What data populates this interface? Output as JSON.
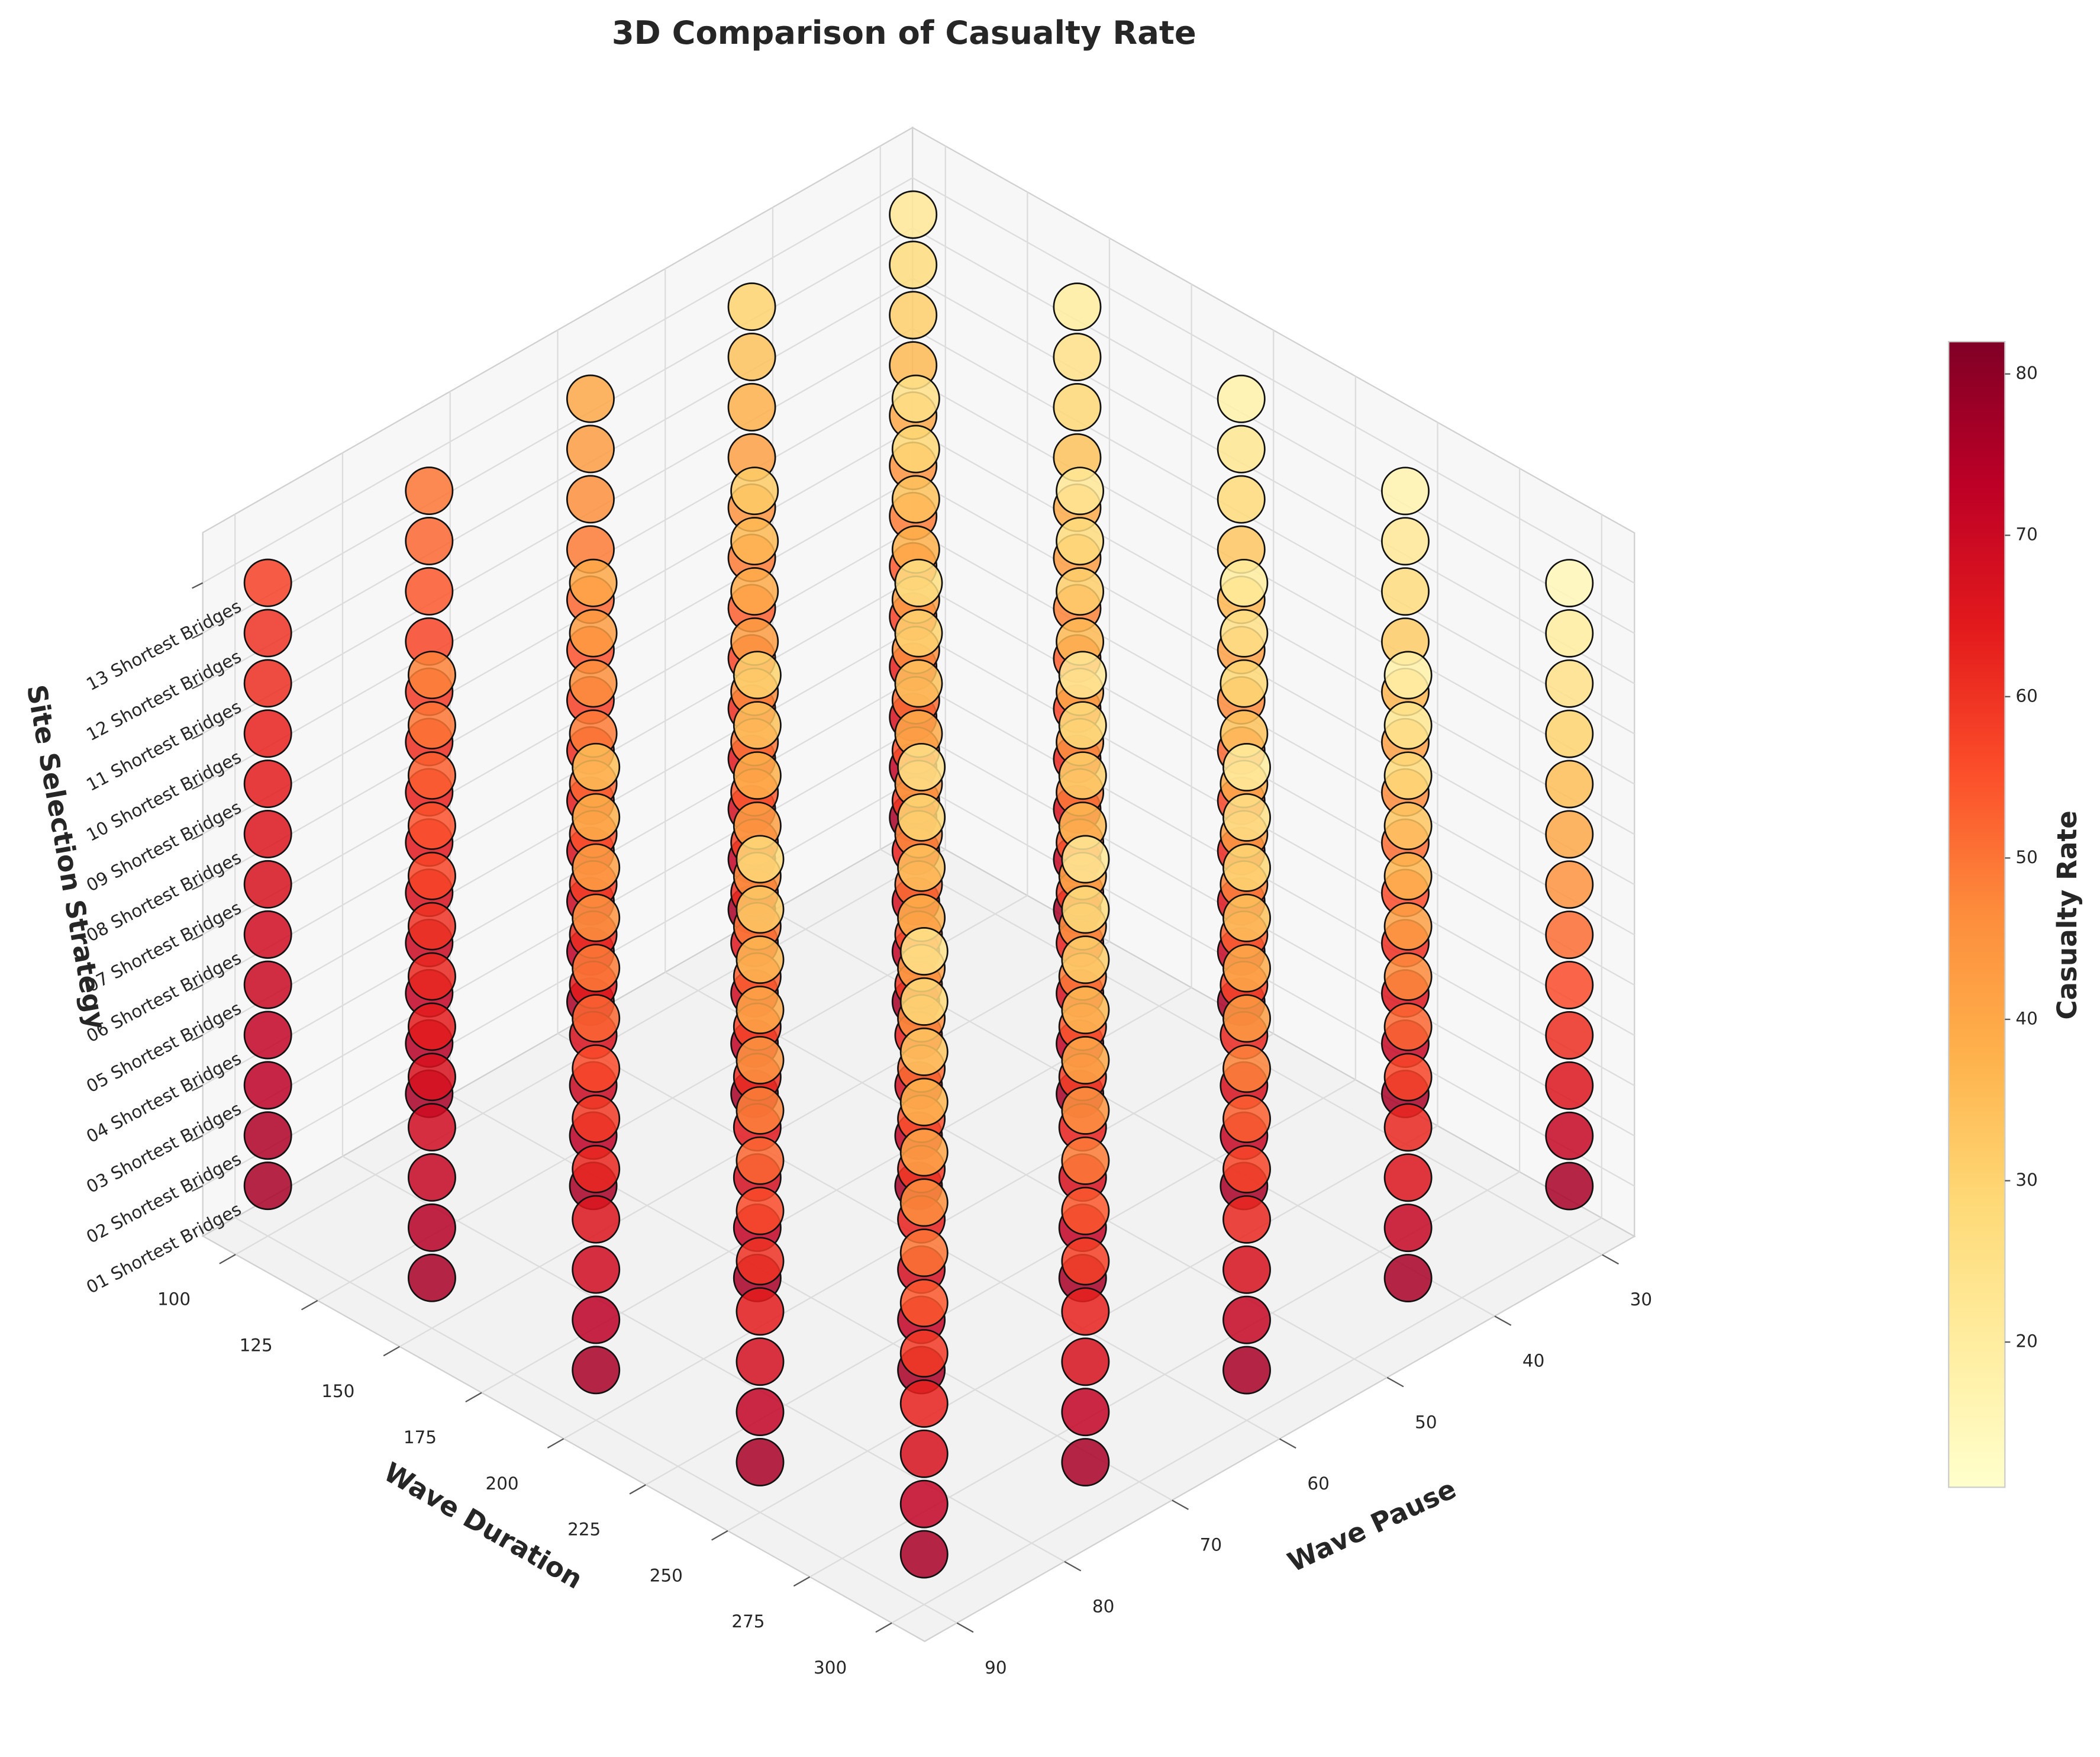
{
  "chart_data": {
    "type": "scatter3d",
    "title": "3D Comparison of Casualty Rate",
    "x_label": "Wave Duration",
    "y_label": "Wave Pause",
    "z_label": "Site Selection Strategy",
    "colorbar_label": "Casualty Rate",
    "xlim": [
      90,
      310
    ],
    "xticks": [
      100,
      125,
      150,
      175,
      200,
      225,
      250,
      275,
      300
    ],
    "ylim": [
      27,
      93
    ],
    "yticks": [
      30,
      40,
      50,
      60,
      70,
      80,
      90
    ],
    "zlim": [
      0,
      14
    ],
    "z_categories": [
      "01 Shortest Bridges",
      "02 Shortest Bridges",
      "03 Shortest Bridges",
      "04 Shortest Bridges",
      "05 Shortest Bridges",
      "06 Shortest Bridges",
      "07 Shortest Bridges",
      "08 Shortest Bridges",
      "09 Shortest Bridges",
      "10 Shortest Bridges",
      "11 Shortest Bridges",
      "12 Shortest Bridges",
      "13 Shortest Bridges"
    ],
    "clim": [
      11,
      82
    ],
    "cticks": [
      20,
      30,
      40,
      50,
      60,
      70,
      80
    ],
    "colormap": [
      "#ffffcc",
      "#ffeda0",
      "#fed976",
      "#feb24c",
      "#fd8d3c",
      "#fc4e2a",
      "#e31a1c",
      "#bd0026",
      "#800026"
    ],
    "columns": [
      {
        "x": 100,
        "y": 30,
        "values": [
          76,
          72,
          67,
          63,
          58,
          54,
          49,
          45,
          40,
          36,
          31,
          27,
          22
        ]
      },
      {
        "x": 150,
        "y": 30,
        "values": [
          76,
          71,
          67,
          62,
          57,
          53,
          48,
          43,
          39,
          34,
          29,
          25,
          20
        ]
      },
      {
        "x": 200,
        "y": 30,
        "values": [
          76,
          71,
          66,
          62,
          57,
          52,
          47,
          42,
          37,
          33,
          28,
          23,
          18
        ]
      },
      {
        "x": 250,
        "y": 30,
        "values": [
          76,
          71,
          66,
          61,
          56,
          51,
          47,
          42,
          37,
          32,
          27,
          22,
          17
        ]
      },
      {
        "x": 300,
        "y": 30,
        "values": [
          76,
          71,
          66,
          61,
          56,
          51,
          45,
          40,
          35,
          30,
          25,
          20,
          15
        ]
      },
      {
        "x": 100,
        "y": 45,
        "values": [
          76,
          72,
          68,
          65,
          61,
          57,
          53,
          49,
          45,
          42,
          38,
          34,
          30
        ]
      },
      {
        "x": 150,
        "y": 45,
        "values": [
          76,
          72,
          68,
          63,
          59,
          55,
          51,
          46,
          42,
          38,
          34,
          29,
          25
        ]
      },
      {
        "x": 200,
        "y": 45,
        "values": [
          76,
          72,
          67,
          63,
          58,
          54,
          49,
          45,
          40,
          36,
          31,
          27,
          22
        ]
      },
      {
        "x": 250,
        "y": 45,
        "values": [
          76,
          71,
          67,
          62,
          57,
          53,
          48,
          43,
          39,
          34,
          29,
          25,
          20
        ]
      },
      {
        "x": 300,
        "y": 45,
        "values": [
          76,
          71,
          66,
          62,
          57,
          52,
          47,
          42,
          37,
          33,
          28,
          23,
          18
        ]
      },
      {
        "x": 100,
        "y": 60,
        "values": [
          76,
          73,
          70,
          67,
          64,
          61,
          58,
          55,
          52,
          49,
          46,
          43,
          40
        ]
      },
      {
        "x": 150,
        "y": 60,
        "values": [
          76,
          72,
          69,
          65,
          61,
          58,
          54,
          50,
          47,
          43,
          39,
          36,
          32
        ]
      },
      {
        "x": 200,
        "y": 60,
        "values": [
          76,
          72,
          68,
          63,
          59,
          55,
          51,
          47,
          43,
          39,
          34,
          30,
          26
        ]
      },
      {
        "x": 250,
        "y": 60,
        "values": [
          76,
          72,
          67,
          63,
          58,
          54,
          49,
          45,
          40,
          36,
          31,
          27,
          22
        ]
      },
      {
        "x": 300,
        "y": 60,
        "values": [
          76,
          71,
          67,
          62,
          57,
          53,
          48,
          43,
          39,
          34,
          29,
          25,
          20
        ]
      },
      {
        "x": 100,
        "y": 75,
        "values": [
          76,
          74,
          72,
          70,
          67,
          65,
          63,
          61,
          59,
          57,
          54,
          52,
          50
        ]
      },
      {
        "x": 150,
        "y": 75,
        "values": [
          76,
          73,
          70,
          67,
          64,
          61,
          58,
          55,
          52,
          49,
          46,
          43,
          40
        ]
      },
      {
        "x": 200,
        "y": 75,
        "values": [
          76,
          72,
          68,
          65,
          61,
          57,
          53,
          49,
          45,
          42,
          38,
          34,
          30
        ]
      },
      {
        "x": 250,
        "y": 75,
        "values": [
          76,
          72,
          68,
          63,
          59,
          55,
          51,
          46,
          42,
          38,
          34,
          29,
          25
        ]
      },
      {
        "x": 300,
        "y": 75,
        "values": [
          76,
          72,
          67,
          63,
          58,
          54,
          49,
          45,
          40,
          36,
          31,
          27,
          22
        ]
      },
      {
        "x": 100,
        "y": 90,
        "values": [
          76,
          75,
          73,
          72,
          70,
          69,
          67,
          66,
          64,
          63,
          61,
          60,
          58
        ]
      },
      {
        "x": 150,
        "y": 90,
        "values": [
          76,
          74,
          71,
          69,
          67,
          64,
          62,
          60,
          57,
          55,
          53,
          50,
          48
        ]
      },
      {
        "x": 200,
        "y": 90,
        "values": [
          76,
          73,
          69,
          66,
          62,
          59,
          56,
          52,
          49,
          45,
          42,
          38,
          35
        ]
      },
      {
        "x": 250,
        "y": 90,
        "values": [
          76,
          72,
          68,
          64,
          60,
          56,
          52,
          48,
          44,
          40,
          36,
          32,
          28
        ]
      },
      {
        "x": 300,
        "y": 90,
        "values": [
          76,
          72,
          67,
          63,
          59,
          54,
          50,
          46,
          41,
          37,
          33,
          28,
          24
        ]
      }
    ]
  }
}
